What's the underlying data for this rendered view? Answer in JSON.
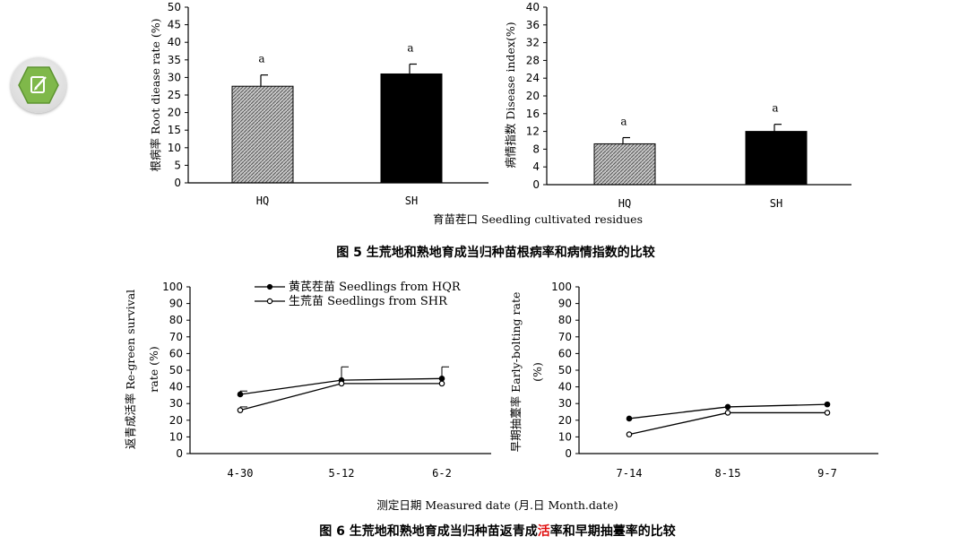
{
  "toolbar": {
    "edit_icon": "edit-note-icon"
  },
  "colors": {
    "hatched_bar": "#9a9a9a",
    "solid_bar": "#000000",
    "highlight_char": "#e01010"
  },
  "fig5": {
    "shared_xlabel": "育苗茬口 Seedling cultivated residues",
    "caption": "图 5  生荒地和熟地育成当归种苗根病率和病情指数的比较",
    "left": {
      "ylabel": "根病率  Root diease rate (%)",
      "yticks": [
        "0",
        "5",
        "10",
        "15",
        "20",
        "25",
        "30",
        "35",
        "40",
        "45",
        "50"
      ],
      "categories": [
        "HQ",
        "SH"
      ],
      "sig_letters": [
        "a",
        "a"
      ]
    },
    "right": {
      "ylabel": "病情指数  Disease index(%)",
      "yticks": [
        "0",
        "4",
        "8",
        "12",
        "16",
        "20",
        "24",
        "28",
        "32",
        "36",
        "40"
      ],
      "categories": [
        "HQ",
        "SH"
      ],
      "sig_letters": [
        "a",
        "a"
      ]
    }
  },
  "fig6": {
    "shared_xlabel": "测定日期 Measured date (月.日 Month.date)",
    "caption_part1": "图 6  生荒地和熟地育成当归种苗返青成",
    "caption_red": "活",
    "caption_part2": "率和早期抽薹率的比较",
    "legend": [
      "黄芪茬苗 Seedlings from HQR",
      "生荒苗 Seedlings from SHR"
    ],
    "left": {
      "ylabel_line1": "返青成活率  Re-green survival",
      "ylabel_line2": "rate (%)",
      "yticks": [
        "0",
        "10",
        "20",
        "30",
        "40",
        "50",
        "60",
        "70",
        "80",
        "90",
        "100"
      ],
      "categories": [
        "4-30",
        "5-12",
        "6-2"
      ]
    },
    "right": {
      "ylabel_line1": "早期抽薹率 Early-bolting rate",
      "ylabel_line2": "(%)",
      "yticks": [
        "0",
        "10",
        "20",
        "30",
        "40",
        "50",
        "60",
        "70",
        "80",
        "90",
        "100"
      ],
      "categories": [
        "7-14",
        "8-15",
        "9-7"
      ]
    }
  },
  "chart_data": [
    {
      "type": "bar",
      "categories": [
        "HQ",
        "SH"
      ],
      "values": [
        27.5,
        31.0
      ],
      "errors": [
        3.2,
        2.8
      ],
      "ylabel": "根病率  Root diease rate (%)",
      "xlabel": "育苗茬口 Seedling cultivated residues",
      "ylim": [
        0,
        50
      ]
    },
    {
      "type": "bar",
      "categories": [
        "HQ",
        "SH"
      ],
      "values": [
        9.2,
        12.0
      ],
      "errors": [
        1.4,
        1.6
      ],
      "ylabel": "病情指数  Disease index(%)",
      "xlabel": "育苗茬口 Seedling cultivated residues",
      "ylim": [
        0,
        40
      ]
    },
    {
      "type": "line",
      "categories": [
        "4-30",
        "5-12",
        "6-2"
      ],
      "series": [
        {
          "name": "黄芪茬苗 Seedlings from HQR",
          "values": [
            35.5,
            44.0,
            45.0
          ],
          "errors": [
            2,
            8,
            7
          ]
        },
        {
          "name": "生荒苗 Seedlings from SHR",
          "values": [
            26.0,
            42.0,
            42.0
          ],
          "errors": [
            2,
            1,
            1
          ]
        }
      ],
      "ylabel": "返青成活率  Re-green survival rate (%)",
      "xlabel": "测定日期 Measured date (月.日 Month.date)",
      "ylim": [
        0,
        100
      ]
    },
    {
      "type": "line",
      "categories": [
        "7-14",
        "8-15",
        "9-7"
      ],
      "series": [
        {
          "name": "黄芪茬苗 Seedlings from HQR",
          "values": [
            21.0,
            28.0,
            29.5
          ],
          "errors": [
            0.5,
            0.5,
            0.5
          ]
        },
        {
          "name": "生荒苗 Seedlings from SHR",
          "values": [
            11.5,
            24.5,
            24.5
          ],
          "errors": [
            0.5,
            0.5,
            0.5
          ]
        }
      ],
      "ylabel": "早期抽薹率 Early-bolting rate (%)",
      "xlabel": "测定日期 Measured date (月.日 Month.date)",
      "ylim": [
        0,
        100
      ]
    }
  ]
}
